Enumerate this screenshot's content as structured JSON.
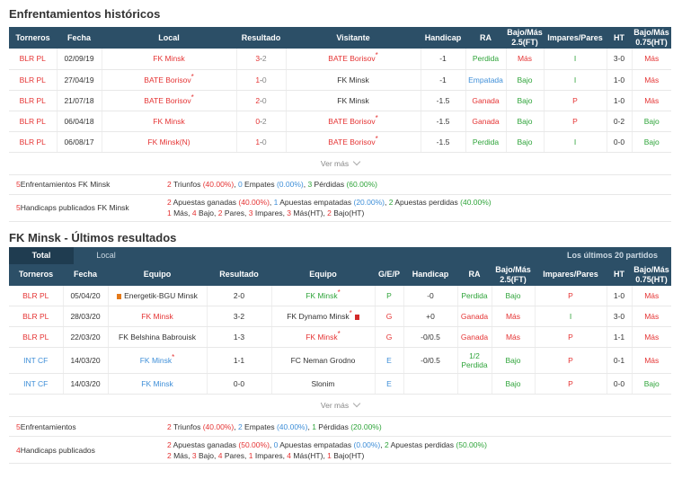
{
  "h2h": {
    "title": "Enfrentamientos históricos",
    "headers": [
      "Torneros",
      "Fecha",
      "Local",
      "Resultado",
      "Visitante",
      "Handicap",
      "RA",
      "Bajo/Más 2.5(FT)",
      "Impares/Pares",
      "HT",
      "Bajo/Más 0.75(HT)"
    ],
    "rows": [
      {
        "league": "BLR PL",
        "date": "02/09/19",
        "home": "FK Minsk",
        "home_ast": "",
        "hs": "3",
        "as": "2",
        "away": "BATE Borisov",
        "away_ast": "*",
        "handicap": "-1",
        "ra": "Perdida",
        "ou": "Más",
        "oe": "I",
        "ht": "3-0",
        "ou_ht": "Más"
      },
      {
        "league": "BLR PL",
        "date": "27/04/19",
        "home": "BATE Borisov",
        "home_ast": "*",
        "hs": "1",
        "as": "0",
        "away": "FK Minsk",
        "away_ast": "",
        "handicap": "-1",
        "ra": "Empatada",
        "ou": "Bajo",
        "oe": "I",
        "ht": "1-0",
        "ou_ht": "Más"
      },
      {
        "league": "BLR PL",
        "date": "21/07/18",
        "home": "BATE Borisov",
        "home_ast": "*",
        "hs": "2",
        "as": "0",
        "away": "FK Minsk",
        "away_ast": "",
        "handicap": "-1.5",
        "ra": "Ganada",
        "ou": "Bajo",
        "oe": "P",
        "ht": "1-0",
        "ou_ht": "Más"
      },
      {
        "league": "BLR PL",
        "date": "06/04/18",
        "home": "FK Minsk",
        "home_ast": "",
        "hs": "0",
        "as": "2",
        "away": "BATE Borisov",
        "away_ast": "*",
        "handicap": "-1.5",
        "ra": "Ganada",
        "ou": "Bajo",
        "oe": "P",
        "ht": "0-2",
        "ou_ht": "Bajo"
      },
      {
        "league": "BLR PL",
        "date": "06/08/17",
        "home": "FK Minsk(N)",
        "home_ast": "",
        "hs": "1",
        "as": "0",
        "away": "BATE Borisov",
        "away_ast": "*",
        "handicap": "-1.5",
        "ra": "Perdida",
        "ou": "Bajo",
        "oe": "I",
        "ht": "0-0",
        "ou_ht": "Bajo"
      }
    ],
    "more": "Ver más",
    "summary1_label_num": "5",
    "summary1_label": " Enfrentamientos FK Minsk",
    "summary1": {
      "wins": "2",
      "wins_word": " Triunfos ",
      "wins_pct": "(40.00%)",
      "draws": "0",
      "draws_word": " Empates ",
      "draws_pct": "(0.00%)",
      "losses": "3",
      "losses_word": " Pérdidas ",
      "losses_pct": "(60.00%)"
    },
    "summary2_label_num": "5",
    "summary2_label": " Handicaps publicados FK Minsk",
    "summary2": {
      "won": "2",
      "won_word": " Apuestas ganadas ",
      "won_pct": "(40.00%)",
      "draw": "1",
      "draw_word": " Apuestas empatadas ",
      "draw_pct": "(20.00%)",
      "lost": "2",
      "lost_word": " Apuestas perdidas ",
      "lost_pct": "(40.00%)"
    },
    "summary2_line2": {
      "mas": "1",
      "mas_w": " Más, ",
      "bajo": "4",
      "bajo_w": " Bajo, ",
      "pares": "2",
      "pares_w": " Pares, ",
      "impares": "3",
      "impares_w": " Impares, ",
      "masht": "3",
      "masht_w": " Más(HT), ",
      "bajoht": "2",
      "bajoht_w": " Bajo(HT)"
    }
  },
  "last": {
    "title": "FK Minsk - Últimos resultados",
    "tab_total": "Total",
    "tab_local": "Local",
    "tab_right": "Los últimos 20 partidos",
    "headers": [
      "Torneros",
      "Fecha",
      "Equipo",
      "Resultado",
      "Equipo",
      "G/E/P",
      "Handicap",
      "RA",
      "Bajo/Más 2.5(FT)",
      "Impares/Pares",
      "HT",
      "Bajo/Más 0.75(HT)"
    ],
    "rows": [
      {
        "league": "BLR PL",
        "league_c": "red",
        "date": "05/04/20",
        "home": "Energetik-BGU Minsk",
        "home_flag": "pre",
        "home_c": "",
        "home_ast": "",
        "res": "2-0",
        "away": "FK Minsk",
        "away_c": "green",
        "away_ast": "*",
        "gep": "P",
        "gep_c": "green",
        "handicap": "-0",
        "ra": "Perdida",
        "ra2": "",
        "ra_c": "green",
        "ou": "Bajo",
        "ou_c": "green",
        "oe": "P",
        "oe_c": "red",
        "ht": "1-0",
        "ou_ht": "Más",
        "ou_ht_c": "red"
      },
      {
        "league": "BLR PL",
        "league_c": "red",
        "date": "28/03/20",
        "home": "FK Minsk",
        "home_flag": "",
        "home_c": "red",
        "home_ast": "",
        "res": "3-2",
        "away": "FK Dynamo Minsk",
        "away_c": "",
        "away_ast": "*",
        "gep": "G",
        "gep_c": "red",
        "handicap": "+0",
        "ra": "Ganada",
        "ra2": "",
        "ra_c": "red",
        "ou": "Más",
        "ou_c": "red",
        "oe": "I",
        "oe_c": "green",
        "ht": "3-0",
        "ou_ht": "Más",
        "ou_ht_c": "red"
      },
      {
        "league": "BLR PL",
        "league_c": "red",
        "date": "22/03/20",
        "home": "FK Belshina Babrouisk",
        "home_flag": "",
        "home_c": "",
        "home_ast": "",
        "res": "1-3",
        "away": "FK Minsk",
        "away_c": "red",
        "away_ast": "*",
        "gep": "G",
        "gep_c": "red",
        "handicap": "-0/0.5",
        "ra": "Ganada",
        "ra2": "",
        "ra_c": "red",
        "ou": "Más",
        "ou_c": "red",
        "oe": "P",
        "oe_c": "red",
        "ht": "1-1",
        "ou_ht": "Más",
        "ou_ht_c": "red"
      },
      {
        "league": "INT CF",
        "league_c": "blue",
        "date": "14/03/20",
        "home": "FK Minsk",
        "home_flag": "",
        "home_c": "blue",
        "home_ast": "*",
        "res": "1-1",
        "away": "FC Neman Grodno",
        "away_c": "",
        "away_ast": "",
        "gep": "E",
        "gep_c": "blue",
        "handicap": "-0/0.5",
        "ra": "1/2",
        "ra2": "Perdida",
        "ra_c": "green",
        "ou": "Bajo",
        "ou_c": "green",
        "oe": "P",
        "oe_c": "red",
        "ht": "0-1",
        "ou_ht": "Más",
        "ou_ht_c": "red"
      },
      {
        "league": "INT CF",
        "league_c": "blue",
        "date": "14/03/20",
        "home": "FK Minsk",
        "home_flag": "",
        "home_c": "blue",
        "home_ast": "",
        "res": "0-0",
        "away": "Slonim",
        "away_c": "",
        "away_ast": "",
        "gep": "E",
        "gep_c": "blue",
        "handicap": "",
        "ra": "",
        "ra2": "",
        "ra_c": "",
        "ou": "Bajo",
        "ou_c": "green",
        "oe": "P",
        "oe_c": "red",
        "ht": "0-0",
        "ou_ht": "Bajo",
        "ou_ht_c": "green"
      }
    ],
    "more": "Ver más",
    "summary1_label_num": "5",
    "summary1_label": " Enfrentamientos",
    "summary1": {
      "wins": "2",
      "wins_word": " Triunfos ",
      "wins_pct": "(40.00%)",
      "draws": "2",
      "draws_word": " Empates ",
      "draws_pct": "(40.00%)",
      "losses": "1",
      "losses_word": " Pérdidas ",
      "losses_pct": "(20.00%)"
    },
    "summary2_label_num": "4",
    "summary2_label": " Handicaps publicados",
    "summary2": {
      "won": "2",
      "won_word": " Apuestas ganadas ",
      "won_pct": "(50.00%)",
      "draw": "0",
      "draw_word": " Apuestas empatadas ",
      "draw_pct": "(0.00%)",
      "lost": "2",
      "lost_word": " Apuestas perdidas ",
      "lost_pct": "(50.00%)"
    },
    "summary2_line2": {
      "mas": "2",
      "mas_w": " Más, ",
      "bajo": "3",
      "bajo_w": " Bajo, ",
      "pares": "4",
      "pares_w": " Pares, ",
      "impares": "1",
      "impares_w": " Impares, ",
      "masht": "4",
      "masht_w": " Más(HT), ",
      "bajoht": "1",
      "bajoht_w": " Bajo(HT)"
    }
  },
  "colors": {
    "header_bg": "#2c4f67",
    "red": "#e53434",
    "green": "#2fa43a",
    "blue": "#3f8fd8"
  }
}
